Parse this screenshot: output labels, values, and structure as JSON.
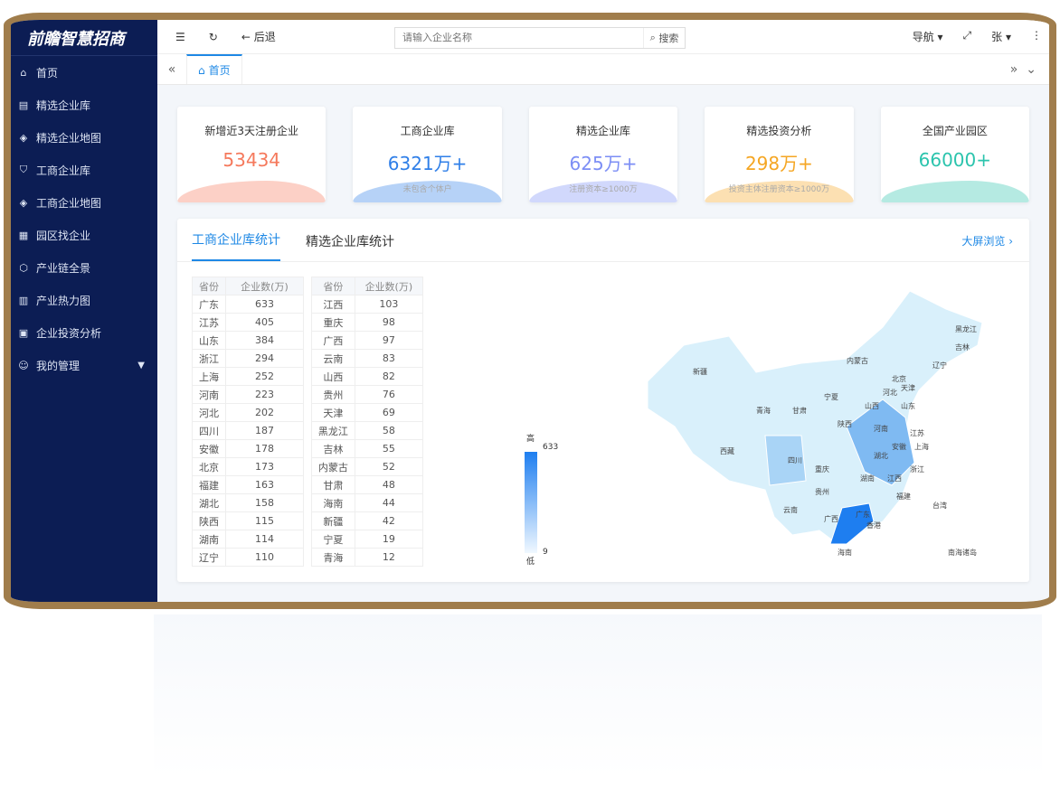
{
  "app": {
    "logo": "前瞻智慧招商"
  },
  "sidebar": {
    "items": [
      {
        "icon": "⌂",
        "label": "首页"
      },
      {
        "icon": "▤",
        "label": "精选企业库"
      },
      {
        "icon": "◈",
        "label": "精选企业地图"
      },
      {
        "icon": "⛉",
        "label": "工商企业库"
      },
      {
        "icon": "◈",
        "label": "工商企业地图"
      },
      {
        "icon": "▦",
        "label": "园区找企业"
      },
      {
        "icon": "⬡",
        "label": "产业链全景"
      },
      {
        "icon": "▥",
        "label": "产业热力图"
      },
      {
        "icon": "▣",
        "label": "企业投资分析"
      },
      {
        "icon": "☺",
        "label": "我的管理"
      }
    ]
  },
  "topbar": {
    "back": "← 后退",
    "search_placeholder": "请输入企业名称",
    "search_btn": "搜索",
    "nav": "导航 ▾",
    "user": "张 ▾"
  },
  "tabs": {
    "home": "首页"
  },
  "cards": [
    {
      "title": "新增近3天注册企业",
      "value": "53434",
      "sub": "",
      "color": "#f5795c"
    },
    {
      "title": "工商企业库",
      "value": "6321万+",
      "sub": "未包含个体户",
      "color": "#2f7fe8"
    },
    {
      "title": "精选企业库",
      "value": "625万+",
      "sub": "注册资本≥1000万",
      "color": "#7c8ef5"
    },
    {
      "title": "精选投资分析",
      "value": "298万+",
      "sub": "投资主体注册资本≥1000万",
      "color": "#f5a623"
    },
    {
      "title": "全国产业园区",
      "value": "66000+",
      "sub": "",
      "color": "#2bc4ad"
    }
  ],
  "panel": {
    "tabs": [
      "工商企业库统计",
      "精选企业库统计"
    ],
    "big_screen": "大屏浏览 ›",
    "headers": [
      "省份",
      "企业数(万)"
    ],
    "table1": [
      [
        "广东",
        "633"
      ],
      [
        "江苏",
        "405"
      ],
      [
        "山东",
        "384"
      ],
      [
        "浙江",
        "294"
      ],
      [
        "上海",
        "252"
      ],
      [
        "河南",
        "223"
      ],
      [
        "河北",
        "202"
      ],
      [
        "四川",
        "187"
      ],
      [
        "安徽",
        "178"
      ],
      [
        "北京",
        "173"
      ],
      [
        "福建",
        "163"
      ],
      [
        "湖北",
        "158"
      ],
      [
        "陕西",
        "115"
      ],
      [
        "湖南",
        "114"
      ],
      [
        "辽宁",
        "110"
      ]
    ],
    "table2": [
      [
        "江西",
        "103"
      ],
      [
        "重庆",
        "98"
      ],
      [
        "广西",
        "97"
      ],
      [
        "云南",
        "83"
      ],
      [
        "山西",
        "82"
      ],
      [
        "贵州",
        "76"
      ],
      [
        "天津",
        "69"
      ],
      [
        "黑龙江",
        "58"
      ],
      [
        "吉林",
        "55"
      ],
      [
        "内蒙古",
        "52"
      ],
      [
        "甘肃",
        "48"
      ],
      [
        "海南",
        "44"
      ],
      [
        "新疆",
        "42"
      ],
      [
        "宁夏",
        "19"
      ],
      [
        "青海",
        "12"
      ]
    ],
    "legend": {
      "high": "高",
      "low": "低",
      "max": "633",
      "min": "9"
    },
    "map_labels": [
      "新疆",
      "西藏",
      "青海",
      "甘肃",
      "内蒙古",
      "黑龙江",
      "吉林",
      "辽宁",
      "北京",
      "天津",
      "河北",
      "山西",
      "山东",
      "宁夏",
      "陕西",
      "河南",
      "江苏",
      "安徽",
      "上海",
      "湖北",
      "四川",
      "重庆",
      "浙江",
      "湖南",
      "江西",
      "贵州",
      "福建",
      "云南",
      "广西",
      "广东",
      "台湾",
      "香港",
      "海南",
      "南海诸岛"
    ]
  }
}
